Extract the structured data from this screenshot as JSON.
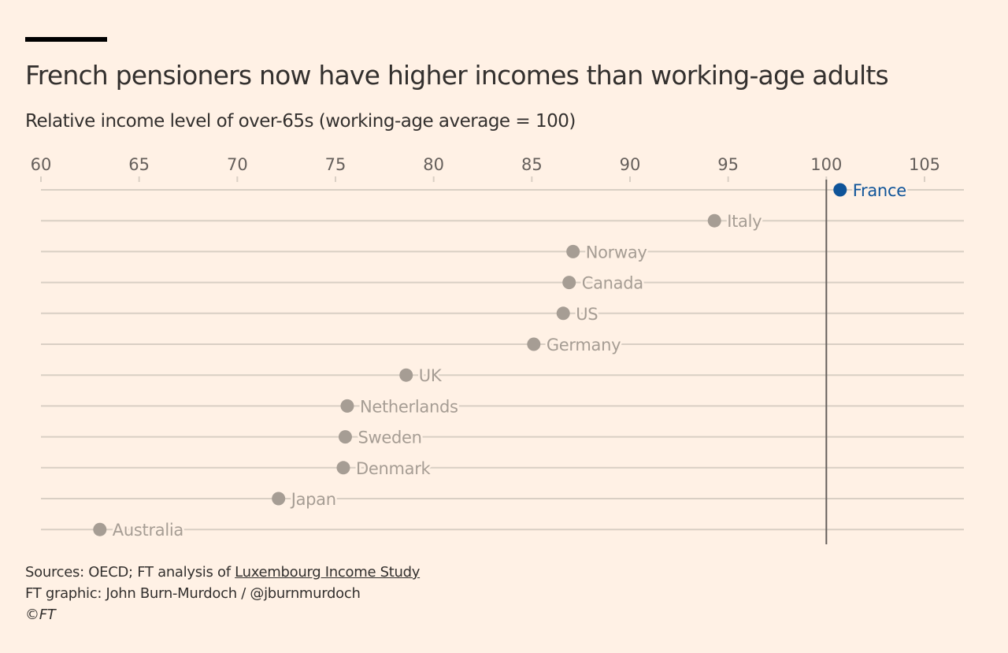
{
  "chart_data": {
    "type": "scatter",
    "title": "French pensioners now have higher incomes than working-age adults",
    "subtitle": "Relative income level of over-65s (working-age average = 100)",
    "xlim": [
      60,
      107
    ],
    "xticks": [
      60,
      65,
      70,
      75,
      80,
      85,
      90,
      95,
      100,
      105
    ],
    "reference_line": 100,
    "categories": [
      "France",
      "Italy",
      "Norway",
      "Canada",
      "US",
      "Germany",
      "UK",
      "Netherlands",
      "Sweden",
      "Denmark",
      "Japan",
      "Australia"
    ],
    "values": [
      100.7,
      94.3,
      87.1,
      86.9,
      86.6,
      85.1,
      78.6,
      75.6,
      75.5,
      75.4,
      72.1,
      63.0
    ],
    "highlight": "France",
    "colors": {
      "highlight": "#0f5499",
      "default": "#a69d94",
      "grid": "#d9cfc4",
      "refline": "#66605c",
      "tick_label": "#66605c"
    }
  },
  "footer": {
    "sources_prefix": "Sources: OECD; FT analysis of ",
    "sources_link": "Luxembourg Income Study",
    "credit": "FT graphic: John Burn-Murdoch / @jburnmurdoch",
    "copyright": "©FT"
  }
}
